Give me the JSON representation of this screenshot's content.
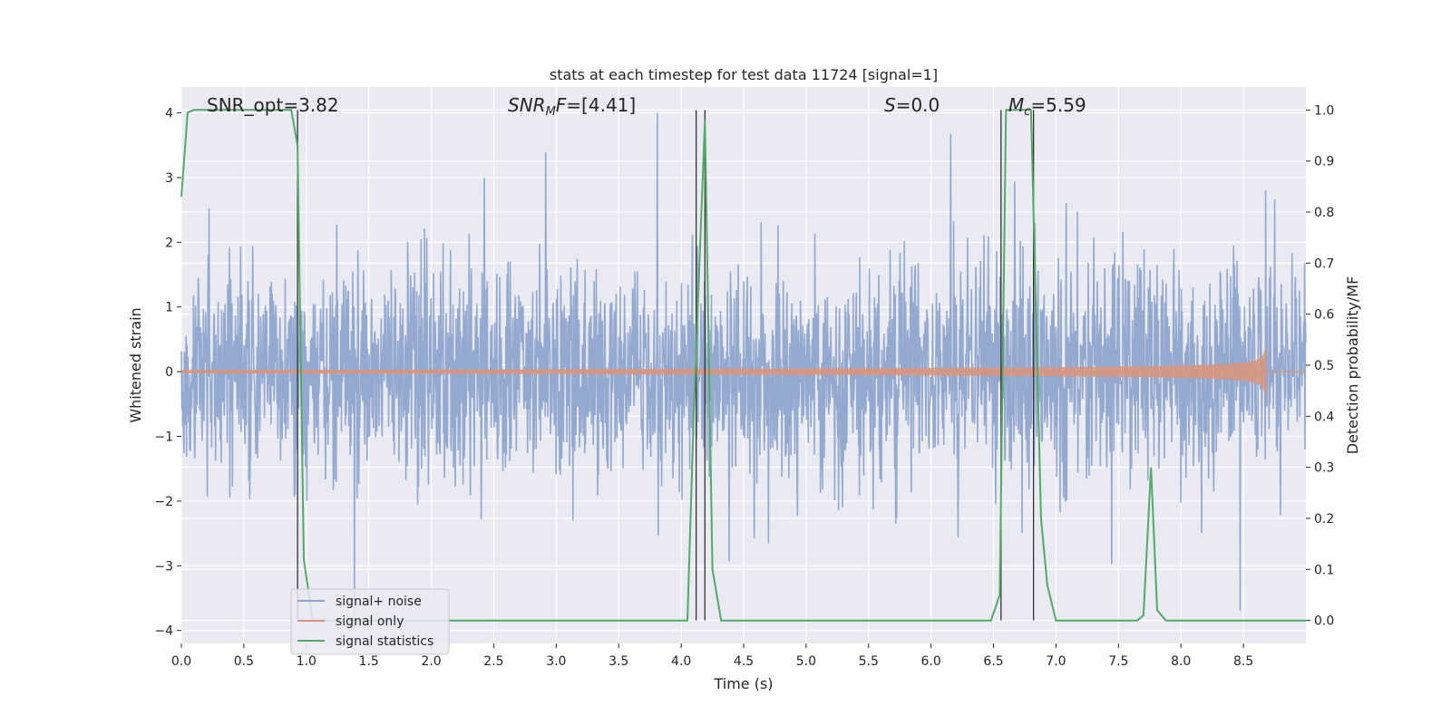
{
  "chart_data": {
    "type": "line",
    "title": "stats at each timestep for test data 11724 [signal=1]",
    "xlabel": "Time (s)",
    "ylabel": "Whitened strain",
    "y2label": "Detection probability/MF",
    "xlim": [
      0.0,
      9.0
    ],
    "ylim": [
      -4.2,
      4.4
    ],
    "y2lim": [
      -0.045,
      1.045
    ],
    "xticks": [
      "0.0",
      "0.5",
      "1.0",
      "1.5",
      "2.0",
      "2.5",
      "3.0",
      "3.5",
      "4.0",
      "4.5",
      "5.0",
      "5.5",
      "6.0",
      "6.5",
      "7.0",
      "7.5",
      "8.0",
      "8.5"
    ],
    "yticks": [
      "4",
      "3",
      "2",
      "1",
      "0",
      "−1",
      "−2",
      "−3",
      "−4"
    ],
    "y2ticks": [
      "1.0",
      "0.9",
      "0.8",
      "0.7",
      "0.6",
      "0.5",
      "0.4",
      "0.3",
      "0.2",
      "0.1",
      "0.0"
    ],
    "grid": true,
    "legend_position": "lower-left",
    "annotations": {
      "snr_opt": "SNR_opt=3.82",
      "snr_mf_italic": "SNR",
      "snr_mf_sub": "M",
      "snr_mf_f": "F",
      "snr_mf_value": "=[4.41]",
      "s_italic": "S",
      "s_value": "=0.0",
      "mc_italic": "M",
      "mc_sub": "c",
      "mc_value": "=5.59"
    },
    "vertical_markers": [
      0.93,
      4.12,
      4.19,
      6.56,
      6.82
    ],
    "series": [
      {
        "name": "signal+ noise",
        "color": "#8fa5cd",
        "axis": "left",
        "description": "whitened strain noise, amplitude roughly ±3 with peaks near 4",
        "seed": 11724
      },
      {
        "name": "signal only",
        "color": "#d9957d",
        "axis": "left",
        "description": "chirp",
        "chirp_end": 8.68,
        "chirp_peak": 0.55
      },
      {
        "name": "signal statistics",
        "color": "#55a868",
        "axis": "right",
        "x": [
          0.0,
          0.05,
          0.1,
          0.3,
          0.5,
          0.7,
          0.88,
          0.93,
          0.98,
          1.05,
          4.05,
          4.1,
          4.19,
          4.25,
          4.32,
          6.48,
          6.55,
          6.6,
          6.7,
          6.8,
          6.88,
          6.93,
          7.0,
          7.65,
          7.7,
          7.76,
          7.81,
          7.88,
          9.0
        ],
        "y": [
          0.83,
          0.995,
          1.0,
          1.0,
          1.0,
          1.0,
          1.0,
          0.93,
          0.12,
          0.0,
          0.0,
          0.4,
          0.98,
          0.1,
          0.0,
          0.0,
          0.05,
          1.0,
          1.0,
          1.0,
          0.2,
          0.07,
          0.0,
          0.0,
          0.01,
          0.3,
          0.02,
          0.0,
          0.0
        ]
      }
    ]
  }
}
